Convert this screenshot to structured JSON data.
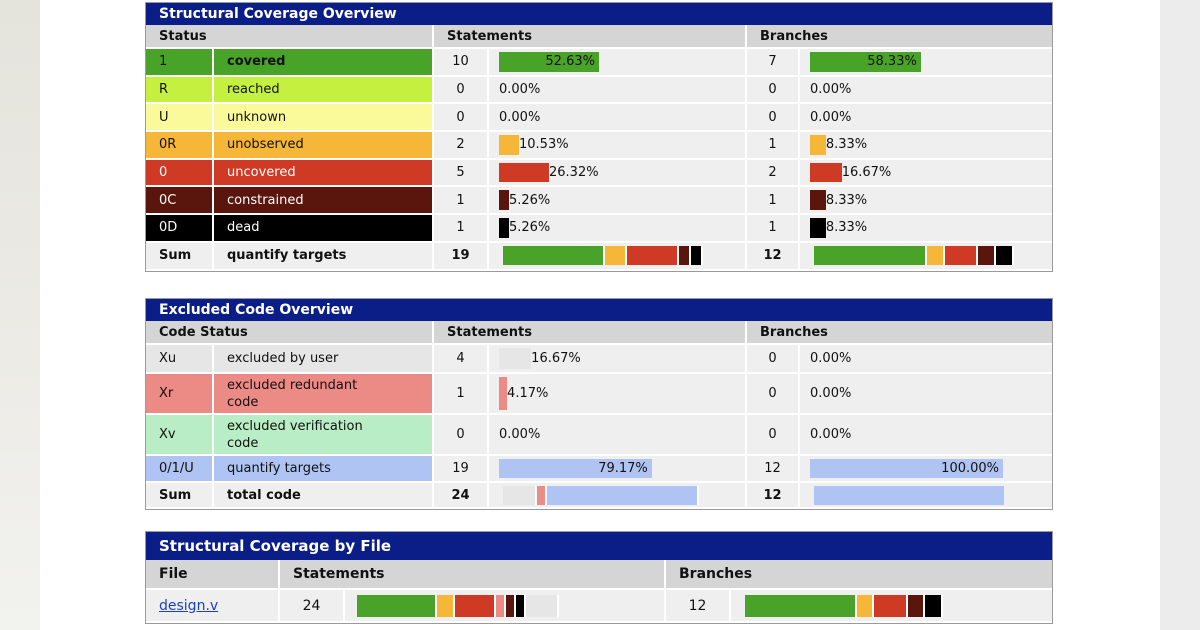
{
  "structural": {
    "title": "Structural Coverage Overview",
    "headers": {
      "status": "Status",
      "statements": "Statements",
      "branches": "Branches"
    },
    "rows": [
      {
        "code": "1",
        "label": "covered",
        "color": "#4aa329",
        "text_color": "#111",
        "stmt_count": "10",
        "stmt_pct": "52.63%",
        "stmt_frac": 0.5263,
        "br_count": "7",
        "br_pct": "58.33%",
        "br_frac": 0.5833
      },
      {
        "code": "R",
        "label": "reached",
        "color": "#c5f040",
        "text_color": "#111",
        "stmt_count": "0",
        "stmt_pct": "0.00%",
        "stmt_frac": 0,
        "br_count": "0",
        "br_pct": "0.00%",
        "br_frac": 0
      },
      {
        "code": "U",
        "label": "unknown",
        "color": "#fbfa9b",
        "text_color": "#111",
        "stmt_count": "0",
        "stmt_pct": "0.00%",
        "stmt_frac": 0,
        "br_count": "0",
        "br_pct": "0.00%",
        "br_frac": 0
      },
      {
        "code": "0R",
        "label": "unobserved",
        "color": "#f6b638",
        "text_color": "#111",
        "stmt_count": "2",
        "stmt_pct": "10.53%",
        "stmt_frac": 0.1053,
        "br_count": "1",
        "br_pct": "8.33%",
        "br_frac": 0.0833
      },
      {
        "code": "0",
        "label": "uncovered",
        "color": "#cf3a24",
        "text_color": "#fff",
        "stmt_count": "5",
        "stmt_pct": "26.32%",
        "stmt_frac": 0.2632,
        "br_count": "2",
        "br_pct": "16.67%",
        "br_frac": 0.1667
      },
      {
        "code": "0C",
        "label": "constrained",
        "color": "#5a160c",
        "text_color": "#fff",
        "stmt_count": "1",
        "stmt_pct": "5.26%",
        "stmt_frac": 0.0526,
        "br_count": "1",
        "br_pct": "8.33%",
        "br_frac": 0.0833
      },
      {
        "code": "0D",
        "label": "dead",
        "color": "#000000",
        "text_color": "#fff",
        "stmt_count": "1",
        "stmt_pct": "5.26%",
        "stmt_frac": 0.0526,
        "br_count": "1",
        "br_pct": "8.33%",
        "br_frac": 0.0833
      }
    ],
    "sum": {
      "code": "Sum",
      "label": "quantify targets",
      "stmt_count": "19",
      "br_count": "12"
    }
  },
  "excluded": {
    "title": "Excluded Code Overview",
    "headers": {
      "status": "Code Status",
      "statements": "Statements",
      "branches": "Branches"
    },
    "rows": [
      {
        "code": "Xu",
        "label": "excluded by user",
        "color": "#e6e6e6",
        "stmt_count": "4",
        "stmt_pct": "16.67%",
        "stmt_frac": 0.1667,
        "br_count": "0",
        "br_pct": "0.00%",
        "br_frac": 0
      },
      {
        "code": "Xr",
        "label": "excluded redundant code",
        "color": "#ec8a86",
        "stmt_count": "1",
        "stmt_pct": "4.17%",
        "stmt_frac": 0.0417,
        "br_count": "0",
        "br_pct": "0.00%",
        "br_frac": 0
      },
      {
        "code": "Xv",
        "label": "excluded verification code",
        "color": "#b9edc5",
        "stmt_count": "0",
        "stmt_pct": "0.00%",
        "stmt_frac": 0,
        "br_count": "0",
        "br_pct": "0.00%",
        "br_frac": 0
      },
      {
        "code": "0/1/U",
        "label": "quantify targets",
        "color": "#b0c4f4",
        "stmt_count": "19",
        "stmt_pct": "79.17%",
        "stmt_frac": 0.7917,
        "br_count": "12",
        "br_pct": "100.00%",
        "br_frac": 1.0
      }
    ],
    "sum": {
      "code": "Sum",
      "label": "total code",
      "stmt_count": "24",
      "br_count": "12"
    }
  },
  "by_file": {
    "title": "Structural Coverage by File",
    "headers": {
      "file": "File",
      "statements": "Statements",
      "branches": "Branches"
    },
    "rows": [
      {
        "file": "design.v",
        "stmt_count": "24",
        "br_count": "12"
      }
    ]
  }
}
